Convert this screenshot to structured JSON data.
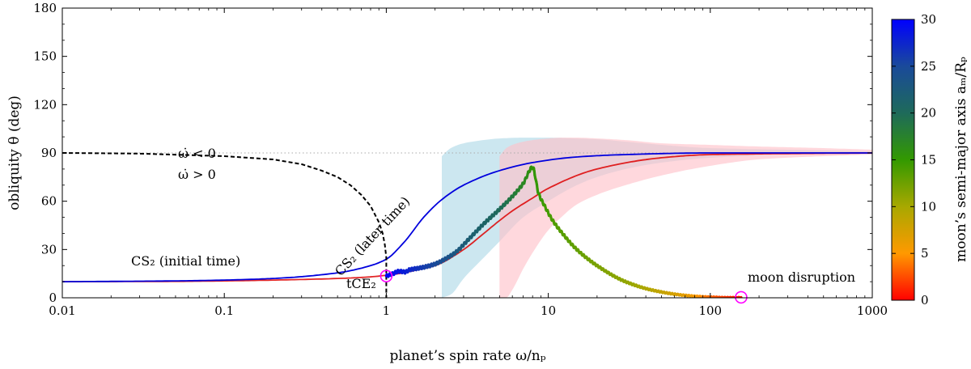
{
  "chart_data": {
    "type": "line",
    "title": "",
    "xlabel": "planet’s spin rate ω/nₚ",
    "ylabel": "obliquity θ (deg)",
    "xscale": "log",
    "xlim": [
      0.01,
      1000
    ],
    "ylim": [
      0,
      180
    ],
    "xticks": [
      {
        "v": 0.01,
        "label": "0.01"
      },
      {
        "v": 0.1,
        "label": "0.1"
      },
      {
        "v": 1,
        "label": "1"
      },
      {
        "v": 10,
        "label": "10"
      },
      {
        "v": 100,
        "label": "100"
      },
      {
        "v": 1000,
        "label": "1000"
      }
    ],
    "yticks": [
      {
        "v": 0,
        "label": "0"
      },
      {
        "v": 30,
        "label": "30"
      },
      {
        "v": 60,
        "label": "60"
      },
      {
        "v": 90,
        "label": "90"
      },
      {
        "v": 120,
        "label": "120"
      },
      {
        "v": 150,
        "label": "150"
      },
      {
        "v": 180,
        "label": "180"
      }
    ],
    "reference_line": {
      "y": 90,
      "style": "dotted"
    },
    "series": [
      {
        "name": "CS2 (later time)",
        "color": "#0000dd",
        "x": [
          0.01,
          0.05,
          0.1,
          0.2,
          0.5,
          0.8,
          1.0,
          1.3,
          1.7,
          2.2,
          3,
          5,
          8,
          15,
          30,
          100,
          1000
        ],
        "y": [
          10,
          10.5,
          11,
          12,
          15.5,
          20,
          24,
          35,
          50,
          61,
          70,
          79,
          84,
          87.5,
          89,
          90,
          90
        ]
      },
      {
        "name": "CS2 (initial time)",
        "color": "#dd0000",
        "x": [
          0.01,
          0.05,
          0.1,
          0.2,
          0.5,
          0.8,
          1.0,
          1.2,
          1.5,
          2,
          3,
          4,
          5,
          6,
          8,
          10,
          20,
          50,
          100,
          1000
        ],
        "y": [
          10,
          10.2,
          10.5,
          11,
          12,
          13,
          14,
          15,
          17,
          20,
          30,
          40,
          48,
          54,
          62,
          68,
          80,
          87,
          89,
          90
        ]
      },
      {
        "name": "Cassini state boundary",
        "color": "#000000",
        "style": "dashed",
        "x": [
          0.01,
          0.03,
          0.1,
          0.2,
          0.3,
          0.4,
          0.5,
          0.6,
          0.7,
          0.8,
          0.9,
          0.95,
          0.98,
          1.0,
          1.0
        ],
        "y": [
          90,
          89.6,
          88,
          86,
          83,
          79,
          75,
          70,
          64,
          57,
          47,
          40,
          33,
          25,
          0
        ]
      },
      {
        "name": "trajectory",
        "colormapped": true,
        "x": [
          1.0,
          1.1,
          1.2,
          1.3,
          1.4,
          1.5,
          1.7,
          2.0,
          2.3,
          2.7,
          3.2,
          4.0,
          5.0,
          6.0,
          7.0,
          8.0,
          8.7,
          9.5,
          10.5,
          12,
          15,
          20,
          30,
          45,
          70,
          100,
          130,
          155
        ],
        "y": [
          13.5,
          15,
          16.5,
          16,
          17.5,
          18,
          19,
          21,
          24,
          28.5,
          36,
          46,
          55,
          63,
          71,
          81,
          65,
          57,
          49,
          41,
          30,
          20,
          10,
          4.5,
          1.5,
          0.5,
          0.2,
          0.2
        ],
        "a_over_Rp": [
          30,
          29,
          28.5,
          28,
          27.5,
          27,
          26,
          25,
          24,
          23,
          22,
          21,
          20,
          18.5,
          17,
          15.5,
          15,
          14.5,
          14,
          13.5,
          13,
          12,
          11,
          9,
          6.5,
          3.5,
          1.5,
          0.5
        ]
      }
    ],
    "bands": [
      {
        "name": "blue band",
        "color": "#add8e6",
        "x": [
          2.2,
          2.5,
          3,
          4,
          5,
          7,
          10,
          15,
          20,
          30,
          50,
          100,
          300,
          1000
        ],
        "lower": [
          0,
          2,
          12,
          25,
          35,
          50,
          60,
          70,
          75,
          80,
          84,
          87,
          89,
          90
        ],
        "upper": [
          88,
          93,
          96,
          98,
          99,
          99.5,
          99.5,
          99,
          98.5,
          97,
          95,
          93,
          92,
          91
        ]
      },
      {
        "name": "pink band",
        "color": "#ffc0c8",
        "x": [
          5,
          5.5,
          6,
          7,
          8,
          10,
          12,
          15,
          20,
          30,
          50,
          100,
          200,
          500,
          1000
        ],
        "lower": [
          0,
          0,
          5,
          18,
          28,
          42,
          50,
          58,
          64,
          70,
          76,
          82,
          86,
          88,
          89
        ],
        "upper": [
          88,
          93,
          95,
          97,
          98,
          99,
          99.5,
          99.5,
          99,
          98,
          96,
          95,
          94,
          93,
          92
        ]
      }
    ],
    "markers": [
      {
        "name": "tCE2",
        "x": 1.0,
        "y": 13.5,
        "color": "#ff00ff"
      },
      {
        "name": "moon disruption",
        "x": 155,
        "y": 0.3,
        "color": "#ff00ff"
      }
    ],
    "annotations": [
      {
        "id": "cs2_initial",
        "text": "CS₂ (initial time)",
        "color": "#dd0000"
      },
      {
        "id": "cs2_later",
        "text": "CS₂ (later time)",
        "color": "#0000dd"
      },
      {
        "id": "omega_neg",
        "text": "ω̇ < 0",
        "color": "#000000"
      },
      {
        "id": "omega_pos",
        "text": "ω̇ > 0",
        "color": "#000000"
      },
      {
        "id": "tce2",
        "text": "tCE₂",
        "color": "#ff00ff"
      },
      {
        "id": "moon_disruption",
        "text": "moon disruption",
        "color": "#ff00ff"
      }
    ],
    "colorbar": {
      "label": "moon’s semi-major axis aₘ/Rₚ",
      "min": 0,
      "max": 30,
      "ticks": [
        {
          "v": 0,
          "label": "0"
        },
        {
          "v": 5,
          "label": "5"
        },
        {
          "v": 10,
          "label": "10"
        },
        {
          "v": 15,
          "label": "15"
        },
        {
          "v": 20,
          "label": "20"
        },
        {
          "v": 25,
          "label": "25"
        },
        {
          "v": 30,
          "label": "30"
        }
      ],
      "stops": [
        {
          "v": 0,
          "color": "#ff0000"
        },
        {
          "v": 5,
          "color": "#ff9900"
        },
        {
          "v": 10,
          "color": "#a8a800"
        },
        {
          "v": 15,
          "color": "#339900"
        },
        {
          "v": 20,
          "color": "#1e6a5a"
        },
        {
          "v": 25,
          "color": "#1a4a9a"
        },
        {
          "v": 30,
          "color": "#0000ff"
        }
      ]
    }
  }
}
